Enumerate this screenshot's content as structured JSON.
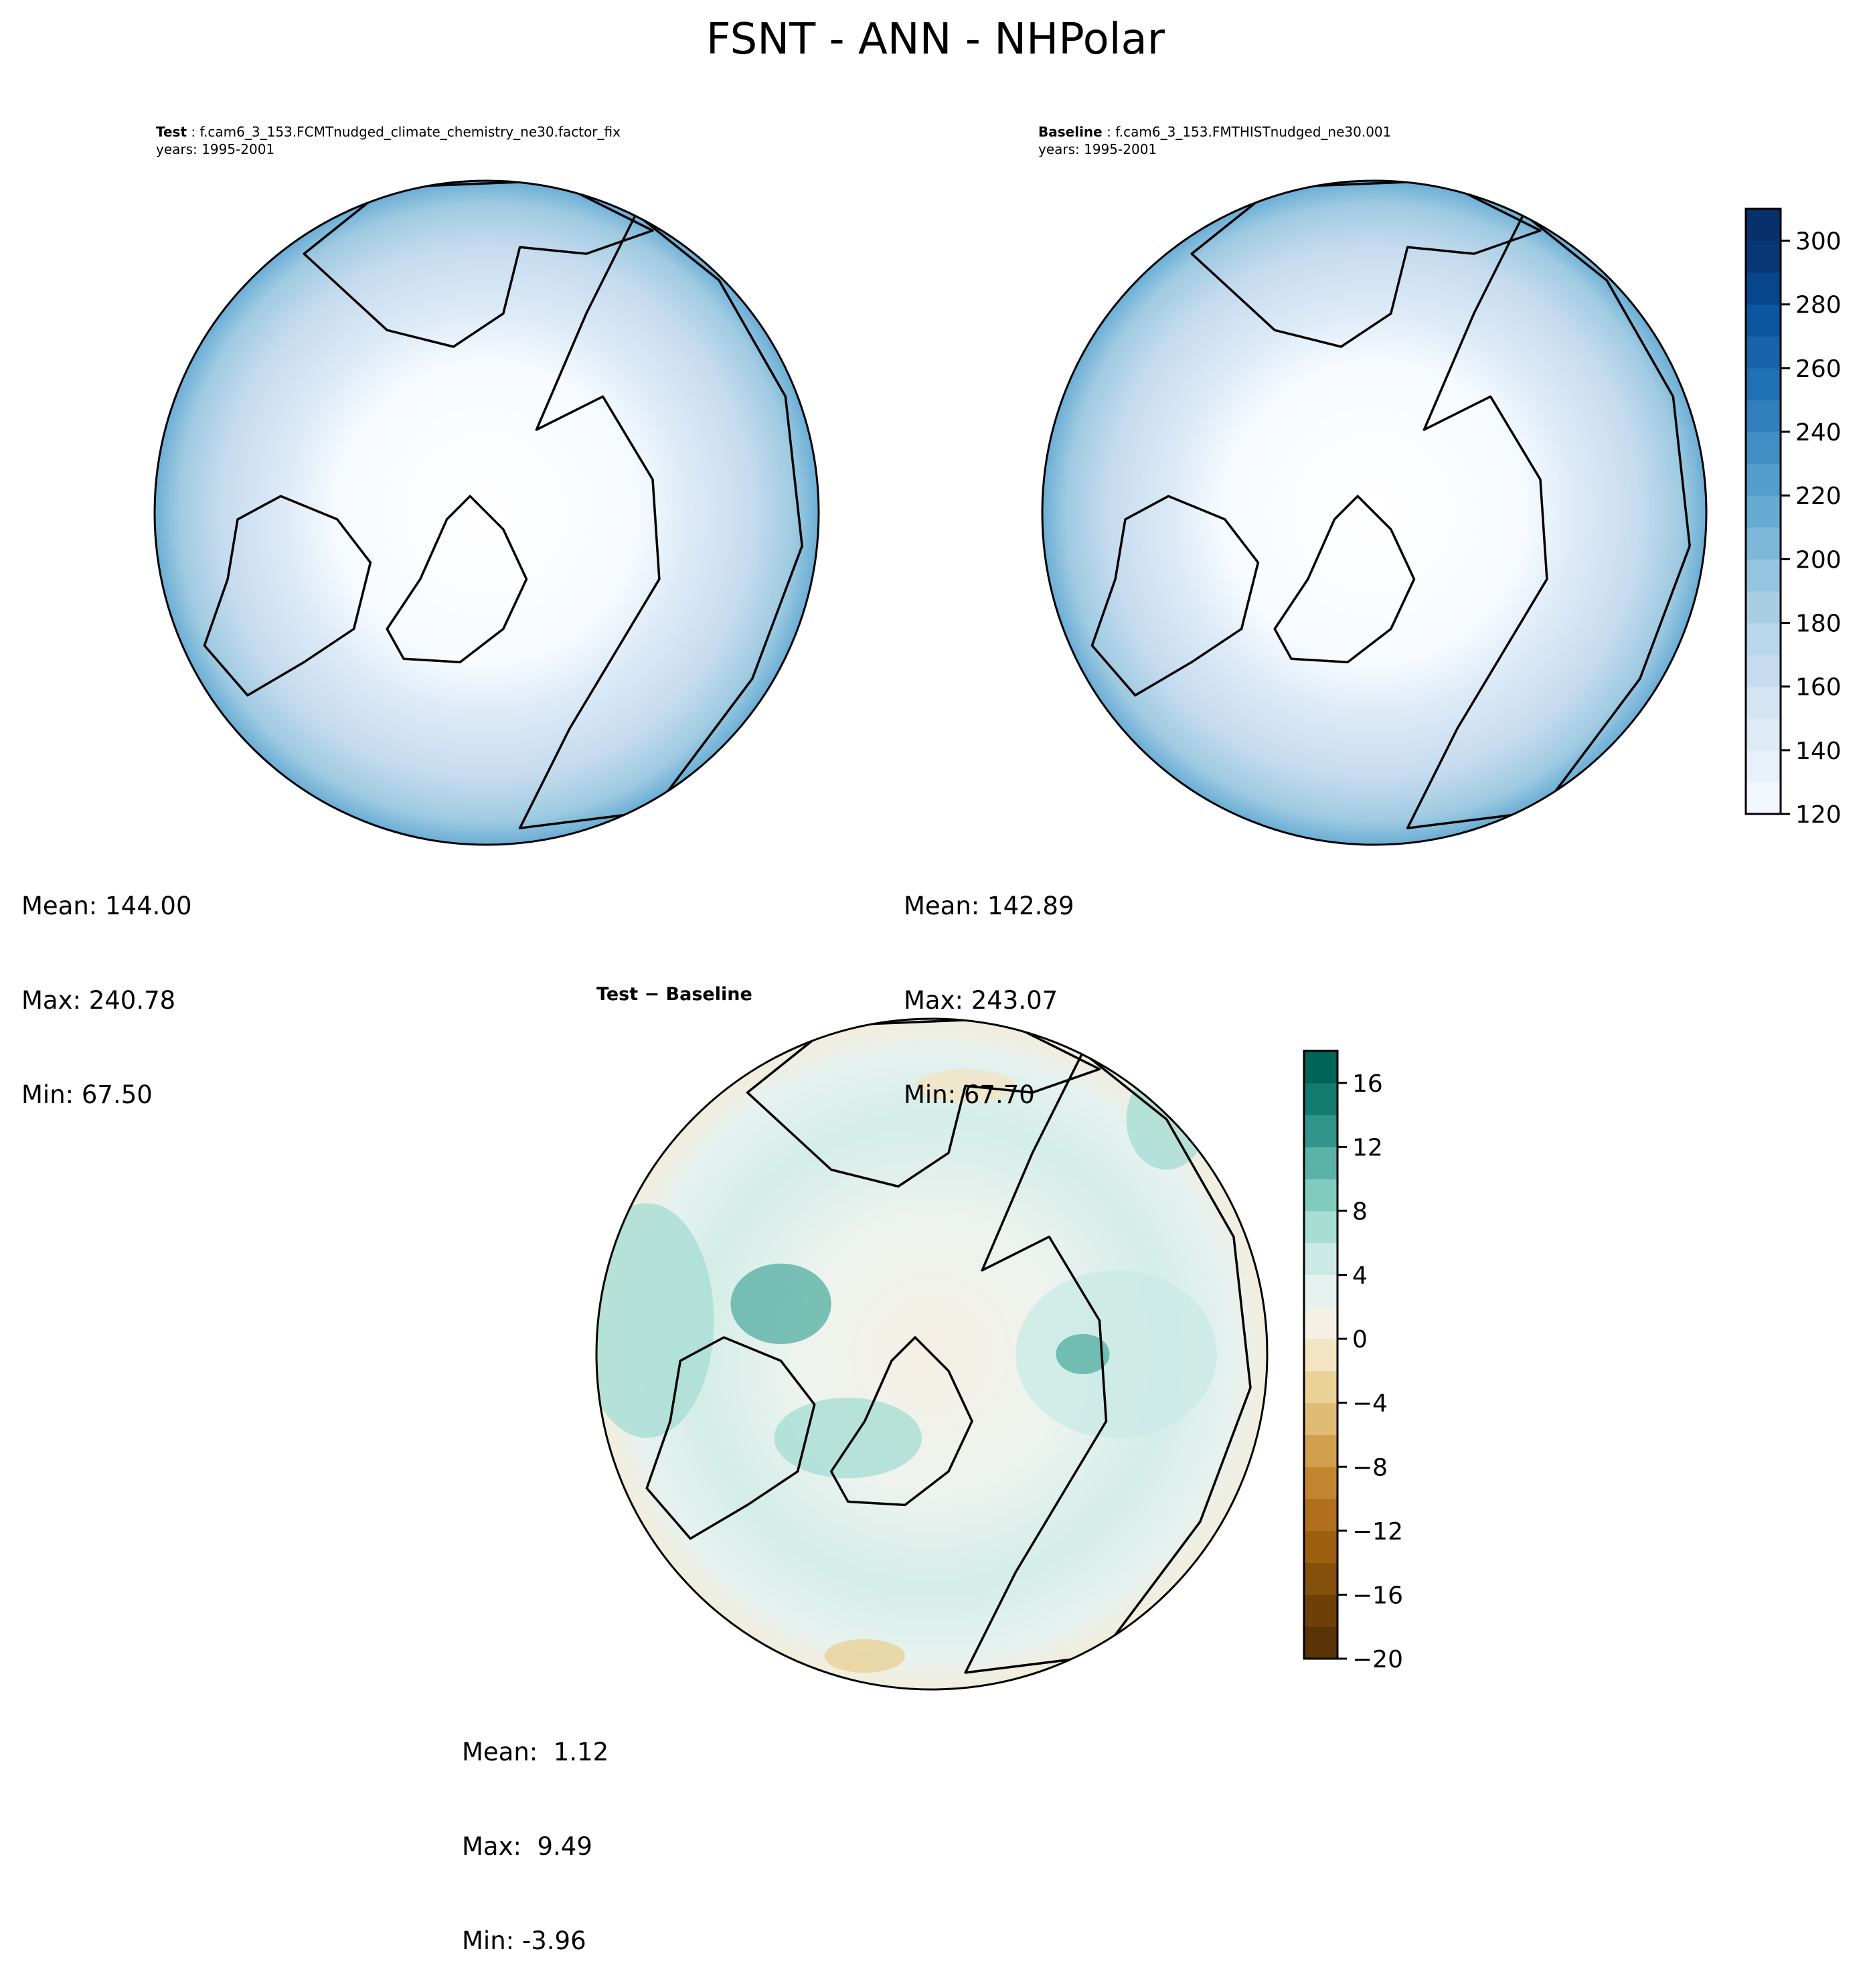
{
  "title": "FSNT - ANN - NHPolar",
  "panels": {
    "test": {
      "label": "Test",
      "case": "f.cam6_3_153.FCMTnudged_climate_chemistry_ne30.factor_fix",
      "years": "years: 1995-2001",
      "stats": {
        "mean": "Mean: 144.00",
        "max": "Max: 240.78",
        "min": "Min: 67.50"
      }
    },
    "baseline": {
      "label": "Baseline",
      "case": "f.cam6_3_153.FMTHISTnudged_ne30.001",
      "years": "years: 1995-2001",
      "stats": {
        "mean": "Mean: 142.89",
        "max": "Max: 243.07",
        "min": "Min: 67.70"
      }
    },
    "diff": {
      "label": "Test − Baseline",
      "stats": {
        "mean": "Mean:  1.12",
        "max": "Max:  9.49",
        "min": "Min: -3.96"
      }
    }
  },
  "chart_data": [
    {
      "type": "heatmap",
      "projection": "north-polar-stereographic",
      "title": "Test : f.cam6_3_153.FCMTnudged_climate_chemistry_ne30.factor_fix",
      "colormap": "Blues",
      "levels": {
        "min": 120,
        "max": 310,
        "step": 10
      },
      "colorbar_ticks": [
        120,
        140,
        160,
        180,
        200,
        220,
        240,
        260,
        280,
        300
      ],
      "stats": {
        "mean": 144.0,
        "max": 240.78,
        "min": 67.5
      }
    },
    {
      "type": "heatmap",
      "projection": "north-polar-stereographic",
      "title": "Baseline : f.cam6_3_153.FMTHISTnudged_ne30.001",
      "colormap": "Blues",
      "levels": {
        "min": 120,
        "max": 310,
        "step": 10
      },
      "colorbar_ticks": [
        120,
        140,
        160,
        180,
        200,
        220,
        240,
        260,
        280,
        300
      ],
      "stats": {
        "mean": 142.89,
        "max": 243.07,
        "min": 67.7
      }
    },
    {
      "type": "heatmap",
      "projection": "north-polar-stereographic",
      "title": "Test − Baseline",
      "colormap": "BrBG",
      "levels": {
        "min": -20,
        "max": 18,
        "step": 2
      },
      "colorbar_ticks": [
        "−20",
        "−16",
        "−12",
        "−8",
        "−4",
        "0",
        "4",
        "8",
        "12",
        "16"
      ],
      "stats": {
        "mean": 1.12,
        "max": 9.49,
        "min": -3.96
      }
    }
  ],
  "colors": {
    "blues": [
      "#f3f8fe",
      "#e8f1fa",
      "#deebf7",
      "#d3e4f3",
      "#c6dbef",
      "#b9d6ea",
      "#a9cee4",
      "#94c4df",
      "#7db8da",
      "#66abd4",
      "#539ecd",
      "#4090c5",
      "#3080bd",
      "#2171b5",
      "#1764ab",
      "#0c56a0",
      "#08468b",
      "#083776",
      "#08306b"
    ],
    "brbg": [
      "#5a3306",
      "#6e3f08",
      "#84500b",
      "#9c5f10",
      "#b16e1c",
      "#c38630",
      "#d1a04e",
      "#dfbb74",
      "#ead196",
      "#f3e5c4",
      "#f4f0e4",
      "#e6f2f0",
      "#cbeae5",
      "#a8ddd3",
      "#80cbbd",
      "#5ab1a5",
      "#32958b",
      "#157b71",
      "#016459",
      "#01473c"
    ]
  }
}
